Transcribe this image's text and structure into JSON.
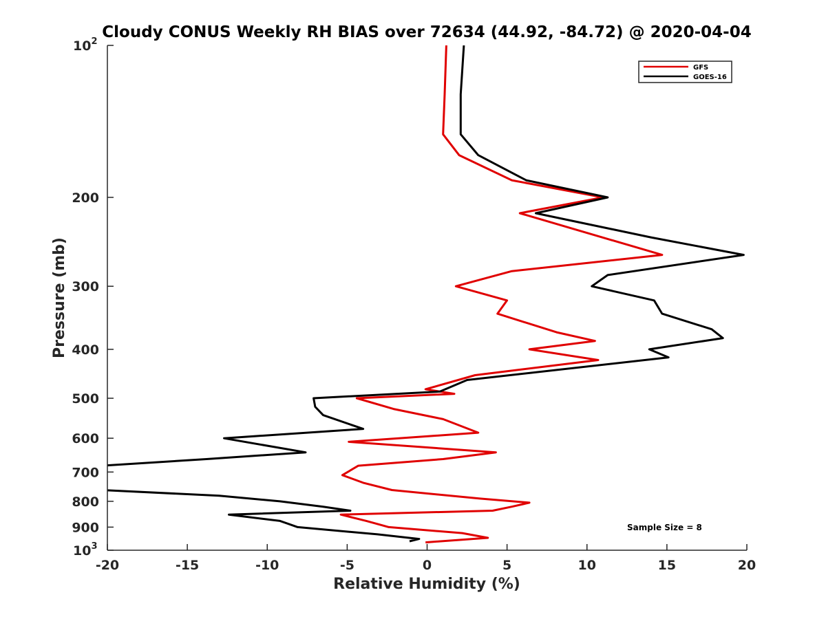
{
  "chart_data": {
    "type": "line",
    "title": "Cloudy CONUS Weekly RH BIAS over 72634 (44.92, -84.72) @ 2020-04-04",
    "xlabel": "Relative Humidity (%)",
    "ylabel": "Pressure (mb)",
    "xlim": [
      -20,
      20
    ],
    "ylim": [
      1000,
      100
    ],
    "yscale": "log",
    "x_ticks": [
      "-20",
      "-15",
      "-10",
      "-5",
      "0",
      "5",
      "10",
      "15",
      "20"
    ],
    "y_ticks": [
      {
        "value": 100,
        "base": "10",
        "exp": "2"
      },
      {
        "value": 200,
        "label": "200"
      },
      {
        "value": 300,
        "label": "300"
      },
      {
        "value": 400,
        "label": "400"
      },
      {
        "value": 500,
        "label": "500"
      },
      {
        "value": 600,
        "label": "600"
      },
      {
        "value": 700,
        "label": "700"
      },
      {
        "value": 800,
        "label": "800"
      },
      {
        "value": 900,
        "label": "900"
      },
      {
        "value": 1000,
        "base": "10",
        "exp": "3"
      }
    ],
    "grid": false,
    "legend_position": "top-right",
    "annotation": "Sample Size = 8",
    "series": [
      {
        "name": "GFS",
        "color": "#e00000",
        "points": [
          [
            1.2,
            100
          ],
          [
            1.1,
            125
          ],
          [
            1.0,
            150
          ],
          [
            2.0,
            165
          ],
          [
            5.3,
            185
          ],
          [
            11.0,
            200
          ],
          [
            5.8,
            215
          ],
          [
            14.7,
            260
          ],
          [
            5.3,
            280
          ],
          [
            1.8,
            300
          ],
          [
            5.0,
            320
          ],
          [
            4.4,
            340
          ],
          [
            8.1,
            370
          ],
          [
            10.5,
            385
          ],
          [
            6.4,
            400
          ],
          [
            10.7,
            420
          ],
          [
            3.0,
            450
          ],
          [
            -0.1,
            480
          ],
          [
            1.7,
            490
          ],
          [
            -4.4,
            500
          ],
          [
            -2.1,
            525
          ],
          [
            1.0,
            550
          ],
          [
            3.2,
            585
          ],
          [
            -4.9,
            610
          ],
          [
            4.3,
            640
          ],
          [
            1.0,
            660
          ],
          [
            -4.3,
            680
          ],
          [
            -5.3,
            710
          ],
          [
            -4.0,
            735
          ],
          [
            -2.2,
            760
          ],
          [
            3.3,
            790
          ],
          [
            6.4,
            805
          ],
          [
            5.3,
            820
          ],
          [
            4.1,
            835
          ],
          [
            -5.4,
            850
          ],
          [
            -3.8,
            875
          ],
          [
            -2.4,
            900
          ],
          [
            2.2,
            925
          ],
          [
            3.8,
            945
          ],
          [
            -0.1,
            965
          ]
        ]
      },
      {
        "name": "GOES-16",
        "color": "#000000",
        "points": [
          [
            2.3,
            100
          ],
          [
            2.1,
            125
          ],
          [
            2.1,
            150
          ],
          [
            3.2,
            165
          ],
          [
            6.2,
            185
          ],
          [
            11.3,
            200
          ],
          [
            6.8,
            215
          ],
          [
            14.0,
            240
          ],
          [
            19.8,
            260
          ],
          [
            11.3,
            285
          ],
          [
            10.3,
            300
          ],
          [
            14.2,
            320
          ],
          [
            14.7,
            340
          ],
          [
            17.8,
            365
          ],
          [
            18.5,
            380
          ],
          [
            13.9,
            400
          ],
          [
            15.1,
            415
          ],
          [
            2.5,
            460
          ],
          [
            0.8,
            485
          ],
          [
            -7.1,
            500
          ],
          [
            -7.0,
            520
          ],
          [
            -6.5,
            540
          ],
          [
            -4.0,
            575
          ],
          [
            -12.7,
            600
          ],
          [
            -7.6,
            640
          ],
          [
            -13.8,
            660
          ],
          [
            -20.3,
            680
          ],
          [
            -20.3,
            760
          ],
          [
            -13.0,
            780
          ],
          [
            -9.2,
            800
          ],
          [
            -6.5,
            820
          ],
          [
            -4.8,
            835
          ],
          [
            -12.4,
            850
          ],
          [
            -9.2,
            875
          ],
          [
            -8.1,
            900
          ],
          [
            -3.1,
            930
          ],
          [
            -0.5,
            950
          ],
          [
            -1.1,
            960
          ]
        ]
      }
    ]
  }
}
